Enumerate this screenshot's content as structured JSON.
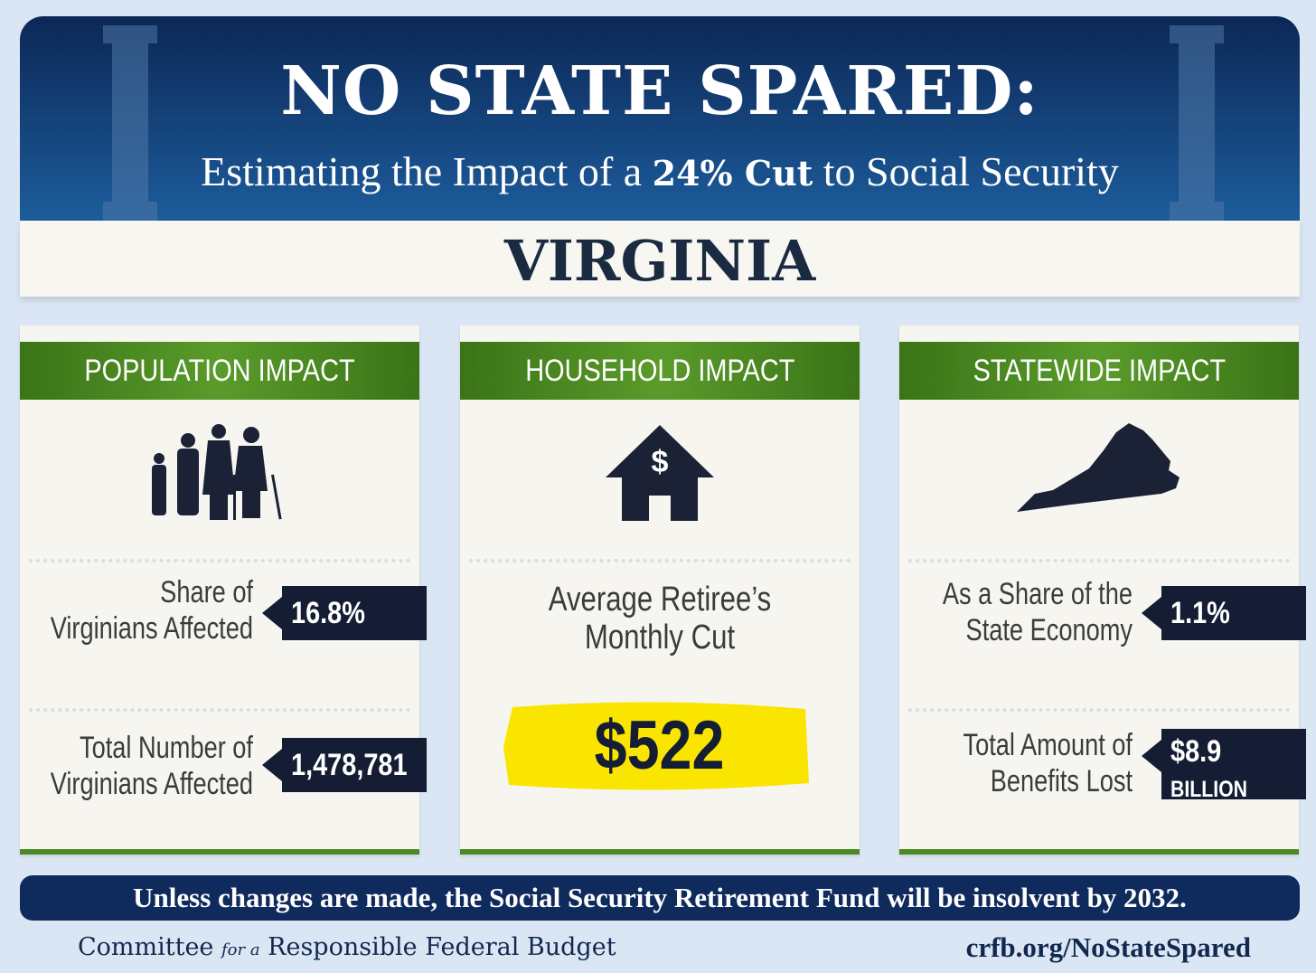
{
  "header": {
    "title": "NO STATE SPARED:",
    "subtitle": [
      "Estimating the Impact of a ",
      "24% Cut",
      " to Social Security"
    ]
  },
  "state": "VIRGINIA",
  "panels": [
    {
      "heading": "POPULATION IMPACT",
      "stats": [
        {
          "label": [
            "Share of",
            "Virginians Affected"
          ],
          "value": "16.8%"
        },
        {
          "label": [
            "Total Number of",
            "Virginians Affected"
          ],
          "value": "1,478,781"
        }
      ]
    },
    {
      "heading": "HOUSEHOLD IMPACT",
      "stats": [
        {
          "label": [
            "Average Retiree’s",
            "Monthly Cut"
          ],
          "value": "$522"
        }
      ]
    },
    {
      "heading": "STATEWIDE IMPACT",
      "stats": [
        {
          "label": [
            "As a Share of the",
            "State Economy"
          ],
          "value": "1.1%"
        },
        {
          "label": [
            "Total Amount of",
            "Benefits Lost"
          ],
          "value": "$8.9",
          "unit": "BILLION"
        }
      ]
    }
  ],
  "banner": "Unless changes are made, the Social Security Retirement Fund will be insolvent by 2032.",
  "footer": {
    "org": [
      "Committee ",
      "for a",
      " Responsible Federal Budget"
    ],
    "url": "crfb.org/NoStateSpared"
  }
}
